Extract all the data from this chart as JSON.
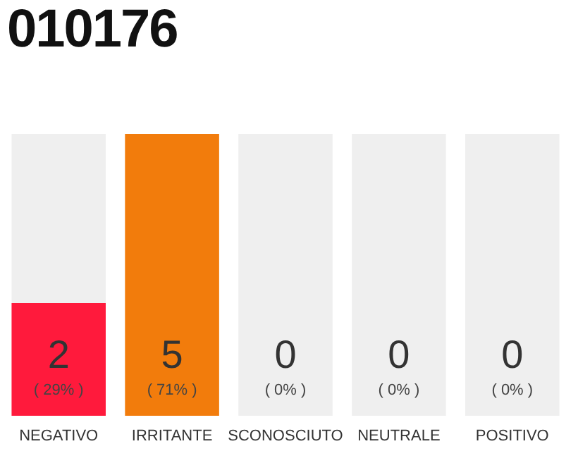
{
  "chart_data": {
    "type": "bar",
    "title": "010176",
    "categories": [
      "NEGATIVO",
      "IRRITANTE",
      "SCONOSCIUTO",
      "NEUTRALE",
      "POSITIVO"
    ],
    "stacked": true,
    "series": [
      {
        "colors": [
          "#ff1a3c",
          "#f27c0c",
          "#ff1a3c",
          "#ff1a3c",
          "#ff1a3c"
        ],
        "values": [
          2,
          5,
          0,
          0,
          0
        ],
        "value_labels": [
          "2",
          "5",
          null,
          null,
          null
        ]
      },
      {
        "color": "#efefef",
        "values": [
          3,
          0,
          5,
          5,
          5
        ]
      }
    ],
    "ylim": [
      0,
      5
    ],
    "annotations": [
      "( 29% )",
      "( 71% )",
      "( 0% )",
      "( 0% )",
      "( 0% )",
      "0",
      "0",
      "0"
    ]
  }
}
